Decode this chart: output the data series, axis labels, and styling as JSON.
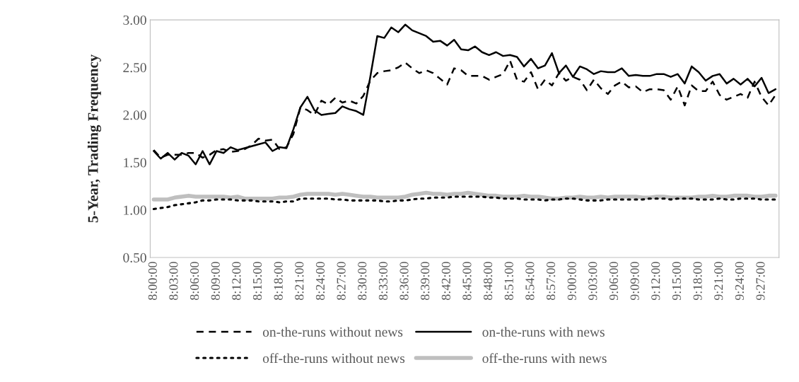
{
  "chart_data": {
    "type": "line",
    "ylabel": "5-Year, Trading Frequency",
    "categories": [
      "8:00:00",
      null,
      null,
      "8:03:00",
      null,
      null,
      "8:06:00",
      null,
      null,
      "8:09:00",
      null,
      null,
      "8:12:00",
      null,
      null,
      "8:15:00",
      null,
      null,
      "8:18:00",
      null,
      null,
      "8:21:00",
      null,
      null,
      "8:24:00",
      null,
      null,
      "8:27:00",
      null,
      null,
      "8:30:00",
      null,
      null,
      "8:33:00",
      null,
      null,
      "8:36:00",
      null,
      null,
      "8:39:00",
      null,
      null,
      "8:42:00",
      null,
      null,
      "8:45:00",
      null,
      null,
      "8:48:00",
      null,
      null,
      "8:51:00",
      null,
      null,
      "8:54:00",
      null,
      null,
      "8:57:00",
      null,
      null,
      "9:00:00",
      null,
      null,
      "9:03:00",
      null,
      null,
      "9:06:00",
      null,
      null,
      "9:09:00",
      null,
      null,
      "9:12:00",
      null,
      null,
      "9:15:00",
      null,
      null,
      "9:18:00",
      null,
      null,
      "9:21:00",
      null,
      null,
      "9:24:00",
      null,
      null,
      "9:27:00",
      null,
      null
    ],
    "ylim": [
      0.5,
      3.0
    ],
    "yticks": [
      {
        "value": 0.5,
        "label": "0.50"
      },
      {
        "value": 1.0,
        "label": "1.00"
      },
      {
        "value": 1.5,
        "label": "1.50"
      },
      {
        "value": 2.0,
        "label": "2.00"
      },
      {
        "value": 2.5,
        "label": "2.50"
      },
      {
        "value": 3.0,
        "label": "3.00"
      }
    ],
    "legend": "bottom",
    "marker": "none",
    "series": [
      {
        "name": "on-the-runs without news",
        "color": "#000000",
        "line_style": "dashed",
        "values": [
          1.63,
          1.55,
          1.58,
          1.58,
          1.58,
          1.6,
          1.6,
          1.55,
          1.58,
          1.63,
          1.64,
          1.61,
          1.62,
          1.64,
          1.68,
          1.75,
          1.73,
          1.74,
          1.64,
          1.66,
          1.8,
          2.08,
          2.05,
          2.0,
          2.15,
          2.11,
          2.18,
          2.13,
          2.15,
          2.12,
          2.2,
          2.36,
          2.44,
          2.46,
          2.47,
          2.5,
          2.55,
          2.49,
          2.44,
          2.47,
          2.44,
          2.38,
          2.32,
          2.49,
          2.47,
          2.41,
          2.41,
          2.41,
          2.37,
          2.4,
          2.43,
          2.57,
          2.37,
          2.35,
          2.45,
          2.27,
          2.37,
          2.31,
          2.44,
          2.36,
          2.4,
          2.37,
          2.26,
          2.37,
          2.28,
          2.22,
          2.31,
          2.35,
          2.29,
          2.3,
          2.24,
          2.27,
          2.27,
          2.26,
          2.16,
          2.3,
          2.1,
          2.31,
          2.25,
          2.25,
          2.35,
          2.21,
          2.16,
          2.19,
          2.22,
          2.18,
          2.35,
          2.19,
          2.1,
          2.21
        ]
      },
      {
        "name": "on-the-runs with news",
        "color": "#000000",
        "line_style": "solid",
        "values": [
          1.62,
          1.54,
          1.6,
          1.53,
          1.6,
          1.57,
          1.48,
          1.62,
          1.48,
          1.62,
          1.6,
          1.66,
          1.63,
          1.65,
          1.67,
          1.69,
          1.71,
          1.62,
          1.66,
          1.65,
          1.85,
          2.08,
          2.19,
          2.05,
          2.0,
          2.01,
          2.02,
          2.09,
          2.06,
          2.04,
          2.0,
          2.4,
          2.83,
          2.81,
          2.92,
          2.87,
          2.95,
          2.89,
          2.86,
          2.83,
          2.77,
          2.78,
          2.73,
          2.79,
          2.69,
          2.68,
          2.72,
          2.66,
          2.63,
          2.66,
          2.62,
          2.63,
          2.61,
          2.51,
          2.59,
          2.49,
          2.52,
          2.65,
          2.44,
          2.52,
          2.4,
          2.51,
          2.48,
          2.43,
          2.46,
          2.45,
          2.45,
          2.49,
          2.41,
          2.42,
          2.41,
          2.41,
          2.43,
          2.43,
          2.4,
          2.43,
          2.33,
          2.51,
          2.45,
          2.36,
          2.41,
          2.43,
          2.33,
          2.38,
          2.32,
          2.38,
          2.3,
          2.39,
          2.23,
          2.27
        ]
      },
      {
        "name": "off-the-runs without news",
        "color": "#000000",
        "line_style": "dotted",
        "values": [
          1.01,
          1.02,
          1.03,
          1.05,
          1.06,
          1.07,
          1.08,
          1.1,
          1.1,
          1.11,
          1.11,
          1.11,
          1.1,
          1.1,
          1.1,
          1.09,
          1.09,
          1.09,
          1.08,
          1.09,
          1.09,
          1.12,
          1.12,
          1.12,
          1.12,
          1.12,
          1.11,
          1.11,
          1.1,
          1.1,
          1.1,
          1.1,
          1.1,
          1.09,
          1.09,
          1.1,
          1.1,
          1.11,
          1.12,
          1.12,
          1.13,
          1.13,
          1.13,
          1.14,
          1.14,
          1.14,
          1.14,
          1.14,
          1.13,
          1.13,
          1.12,
          1.12,
          1.12,
          1.11,
          1.11,
          1.11,
          1.1,
          1.11,
          1.11,
          1.12,
          1.12,
          1.11,
          1.1,
          1.1,
          1.1,
          1.11,
          1.11,
          1.11,
          1.11,
          1.11,
          1.11,
          1.12,
          1.12,
          1.12,
          1.11,
          1.12,
          1.12,
          1.12,
          1.11,
          1.11,
          1.11,
          1.12,
          1.11,
          1.11,
          1.12,
          1.12,
          1.12,
          1.11,
          1.11,
          1.11
        ]
      },
      {
        "name": "off-the-runs with news",
        "color": "#bfbfbf",
        "line_style": "solid",
        "values": [
          1.11,
          1.11,
          1.11,
          1.13,
          1.14,
          1.15,
          1.14,
          1.14,
          1.14,
          1.14,
          1.14,
          1.13,
          1.14,
          1.12,
          1.12,
          1.12,
          1.12,
          1.12,
          1.13,
          1.13,
          1.14,
          1.16,
          1.17,
          1.17,
          1.17,
          1.17,
          1.16,
          1.17,
          1.16,
          1.15,
          1.14,
          1.14,
          1.13,
          1.13,
          1.13,
          1.13,
          1.14,
          1.16,
          1.17,
          1.18,
          1.17,
          1.17,
          1.16,
          1.17,
          1.17,
          1.18,
          1.17,
          1.16,
          1.15,
          1.15,
          1.14,
          1.14,
          1.14,
          1.15,
          1.14,
          1.14,
          1.13,
          1.12,
          1.12,
          1.13,
          1.13,
          1.14,
          1.13,
          1.13,
          1.14,
          1.13,
          1.14,
          1.14,
          1.14,
          1.14,
          1.13,
          1.13,
          1.14,
          1.14,
          1.13,
          1.13,
          1.13,
          1.13,
          1.14,
          1.14,
          1.15,
          1.14,
          1.14,
          1.15,
          1.15,
          1.15,
          1.14,
          1.14,
          1.15,
          1.15
        ]
      }
    ]
  }
}
